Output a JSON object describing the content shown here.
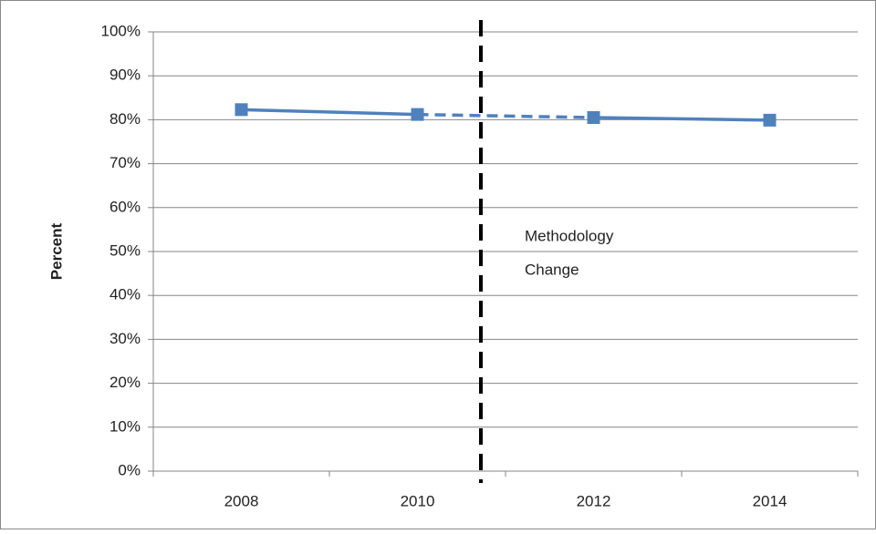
{
  "chart_data": {
    "type": "line",
    "y_label": "Percent",
    "categories": [
      "2008",
      "2010",
      "2012",
      "2014"
    ],
    "series": [
      {
        "color": "#4f81bd",
        "values": [
          82.3,
          81.2,
          80.5,
          79.9
        ],
        "dashed_segments": [
          1
        ]
      }
    ],
    "ylim": [
      0,
      100
    ],
    "yticks": [
      {
        "value": 0,
        "label": "0%"
      },
      {
        "value": 10,
        "label": "10%"
      },
      {
        "value": 20,
        "label": "20%"
      },
      {
        "value": 30,
        "label": "30%"
      },
      {
        "value": 40,
        "label": "40%"
      },
      {
        "value": 50,
        "label": "50%"
      },
      {
        "value": 60,
        "label": "60%"
      },
      {
        "value": 70,
        "label": "70%"
      },
      {
        "value": 80,
        "label": "80%"
      },
      {
        "value": 90,
        "label": "90%"
      },
      {
        "value": 100,
        "label": "100%"
      }
    ],
    "grid": true,
    "annotation": [
      "Methodology",
      "Change"
    ]
  }
}
